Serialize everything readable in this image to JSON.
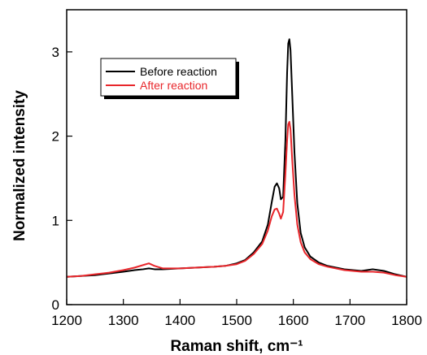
{
  "chart_data": {
    "type": "line",
    "xlabel": "Raman shift, cm⁻¹",
    "ylabel": "Normalized intensity",
    "xlim": [
      1200,
      1800
    ],
    "ylim": [
      0,
      3.5
    ],
    "x_ticks": [
      "1200",
      "1300",
      "1400",
      "1500",
      "1600",
      "1700",
      "1800"
    ],
    "y_ticks": [
      "0",
      "1",
      "2",
      "3"
    ],
    "grid": false,
    "legend_position": "top-left",
    "series": [
      {
        "name": "Before reaction",
        "color": "#000000",
        "x": [
          1200,
          1225,
          1250,
          1275,
          1300,
          1320,
          1335,
          1345,
          1355,
          1370,
          1400,
          1430,
          1460,
          1480,
          1500,
          1515,
          1530,
          1545,
          1555,
          1562,
          1567,
          1571,
          1575,
          1578,
          1582,
          1586,
          1589,
          1591,
          1593,
          1595,
          1598,
          1602,
          1607,
          1613,
          1620,
          1630,
          1645,
          1660,
          1690,
          1720,
          1740,
          1760,
          1780,
          1800
        ],
        "y": [
          0.33,
          0.34,
          0.35,
          0.37,
          0.39,
          0.41,
          0.42,
          0.43,
          0.42,
          0.42,
          0.43,
          0.44,
          0.45,
          0.46,
          0.49,
          0.53,
          0.62,
          0.75,
          0.95,
          1.22,
          1.4,
          1.44,
          1.38,
          1.25,
          1.28,
          1.95,
          2.75,
          3.1,
          3.15,
          3.02,
          2.5,
          1.8,
          1.2,
          0.85,
          0.68,
          0.57,
          0.5,
          0.46,
          0.42,
          0.4,
          0.42,
          0.4,
          0.36,
          0.33
        ]
      },
      {
        "name": "After reaction",
        "color": "#e8262b",
        "x": [
          1200,
          1225,
          1250,
          1275,
          1300,
          1320,
          1335,
          1345,
          1355,
          1370,
          1400,
          1430,
          1460,
          1480,
          1500,
          1515,
          1530,
          1545,
          1555,
          1562,
          1567,
          1571,
          1575,
          1578,
          1582,
          1586,
          1589,
          1591,
          1593,
          1595,
          1598,
          1602,
          1607,
          1613,
          1620,
          1630,
          1645,
          1660,
          1690,
          1720,
          1740,
          1760,
          1780,
          1800
        ],
        "y": [
          0.33,
          0.34,
          0.36,
          0.38,
          0.41,
          0.44,
          0.47,
          0.49,
          0.46,
          0.43,
          0.43,
          0.44,
          0.45,
          0.46,
          0.48,
          0.52,
          0.6,
          0.72,
          0.88,
          1.05,
          1.13,
          1.14,
          1.08,
          1.02,
          1.1,
          1.55,
          1.95,
          2.14,
          2.17,
          2.08,
          1.72,
          1.3,
          0.95,
          0.74,
          0.62,
          0.54,
          0.48,
          0.45,
          0.41,
          0.39,
          0.39,
          0.38,
          0.35,
          0.33
        ]
      }
    ]
  }
}
